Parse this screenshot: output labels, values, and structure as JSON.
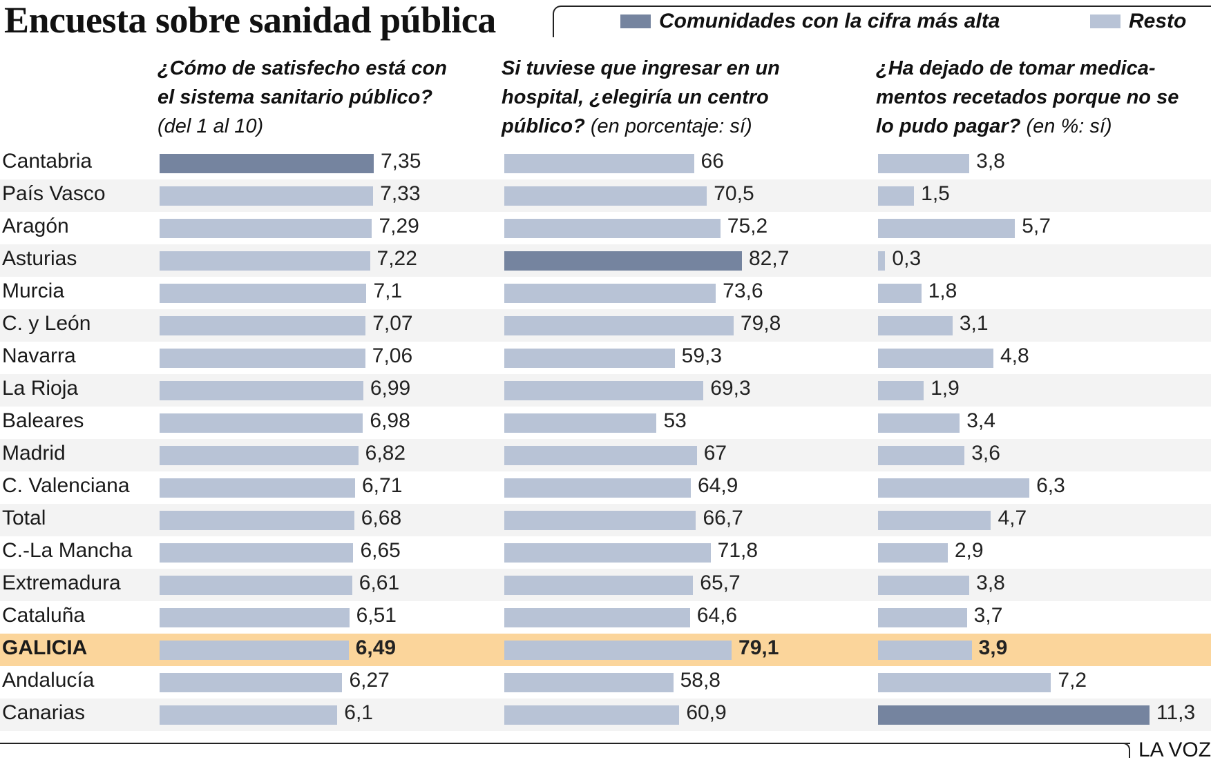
{
  "title": "Encuesta sobre sanidad pública",
  "legend": {
    "highest_label": "Comunidades con la cifra más alta",
    "rest_label": "Resto"
  },
  "colors": {
    "highest": "#75849f",
    "rest": "#b8c3d6",
    "highlight_row": "#fbd59b",
    "stripe": "#f3f3f3"
  },
  "headers": [
    {
      "question": "¿Cómo de satisfecho está con el sistema sanitario público?",
      "unit": "(del 1 al 10)"
    },
    {
      "question": "Si tuviese que ingresar en un hospital, ¿elegiría un centro público?",
      "unit": "(en porcentaje: sí)"
    },
    {
      "question": "¿Ha dejado de tomar medica-mentos recetados porque no se lo pudo pagar?",
      "unit": "(en %: sí)"
    }
  ],
  "source": "LA VOZ",
  "highlight_region": "GALICIA",
  "chart_data": {
    "type": "bar",
    "orientation": "horizontal",
    "categories": [
      "Cantabria",
      "País Vasco",
      "Aragón",
      "Asturias",
      "Murcia",
      "C. y León",
      "Navarra",
      "La Rioja",
      "Baleares",
      "Madrid",
      "C. Valenciana",
      "Total",
      "C.-La Mancha",
      "Extremadura",
      "Cataluña",
      "GALICIA",
      "Andalucía",
      "Canarias"
    ],
    "series": [
      {
        "name": "¿Cómo de satisfecho está con el sistema sanitario público? (del 1 al 10)",
        "values": [
          7.35,
          7.33,
          7.29,
          7.22,
          7.1,
          7.07,
          7.06,
          6.99,
          6.98,
          6.82,
          6.71,
          6.68,
          6.65,
          6.61,
          6.51,
          6.49,
          6.27,
          6.1
        ],
        "labels": [
          "7,35",
          "7,33",
          "7,29",
          "7,22",
          "7,1",
          "7,07",
          "7,06",
          "6,99",
          "6,98",
          "6,82",
          "6,71",
          "6,68",
          "6,65",
          "6,61",
          "6,51",
          "6,49",
          "6,27",
          "6,1"
        ],
        "highest": "Cantabria"
      },
      {
        "name": "Si tuviese que ingresar en un hospital, ¿elegiría un centro público? (en porcentaje: sí)",
        "values": [
          66,
          70.5,
          75.2,
          82.7,
          73.6,
          79.8,
          59.3,
          69.3,
          53,
          67,
          64.9,
          66.7,
          71.8,
          65.7,
          64.6,
          79.1,
          58.8,
          60.9
        ],
        "labels": [
          "66",
          "70,5",
          "75,2",
          "82,7",
          "73,6",
          "79,8",
          "59,3",
          "69,3",
          "53",
          "67",
          "64,9",
          "66,7",
          "71,8",
          "65,7",
          "64,6",
          "79,1",
          "58,8",
          "60,9"
        ],
        "highest": "Asturias"
      },
      {
        "name": "¿Ha dejado de tomar medicamentos recetados porque no se lo pudo pagar? (en %: sí)",
        "values": [
          3.8,
          1.5,
          5.7,
          0.3,
          1.8,
          3.1,
          4.8,
          1.9,
          3.4,
          3.6,
          6.3,
          4.7,
          2.9,
          3.8,
          3.7,
          3.9,
          7.2,
          11.3
        ],
        "labels": [
          "3,8",
          "1,5",
          "5,7",
          "0,3",
          "1,8",
          "3,1",
          "4,8",
          "1,9",
          "3,4",
          "3,6",
          "6,3",
          "4,7",
          "2,9",
          "3,8",
          "3,7",
          "3,9",
          "7,2",
          "11,3"
        ],
        "highest": "Canarias"
      }
    ]
  }
}
